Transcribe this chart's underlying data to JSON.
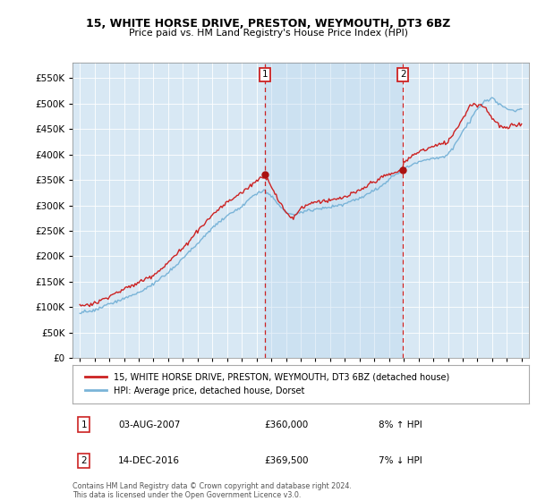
{
  "title": "15, WHITE HORSE DRIVE, PRESTON, WEYMOUTH, DT3 6BZ",
  "subtitle": "Price paid vs. HM Land Registry's House Price Index (HPI)",
  "legend_line1": "15, WHITE HORSE DRIVE, PRESTON, WEYMOUTH, DT3 6BZ (detached house)",
  "legend_line2": "HPI: Average price, detached house, Dorset",
  "annotation1": {
    "label": "1",
    "date": "03-AUG-2007",
    "price": "£360,000",
    "pct": "8% ↑ HPI",
    "x_year": 2007.58,
    "y_val": 360000
  },
  "annotation2": {
    "label": "2",
    "date": "14-DEC-2016",
    "price": "£369,500",
    "pct": "7% ↓ HPI",
    "x_year": 2016.95,
    "y_val": 369500
  },
  "footer": "Contains HM Land Registry data © Crown copyright and database right 2024.\nThis data is licensed under the Open Government Licence v3.0.",
  "hpi_color": "#7ab4d8",
  "hpi_fill_color": "#c8dff0",
  "price_color": "#cc2222",
  "dot_color": "#aa1111",
  "annotation_color": "#cc2222",
  "background_color": "#ffffff",
  "plot_bg_color": "#d8e8f4",
  "ylim": [
    0,
    580000
  ],
  "yticks": [
    0,
    50000,
    100000,
    150000,
    200000,
    250000,
    300000,
    350000,
    400000,
    450000,
    500000,
    550000
  ],
  "xlim_start": 1994.5,
  "xlim_end": 2025.5
}
